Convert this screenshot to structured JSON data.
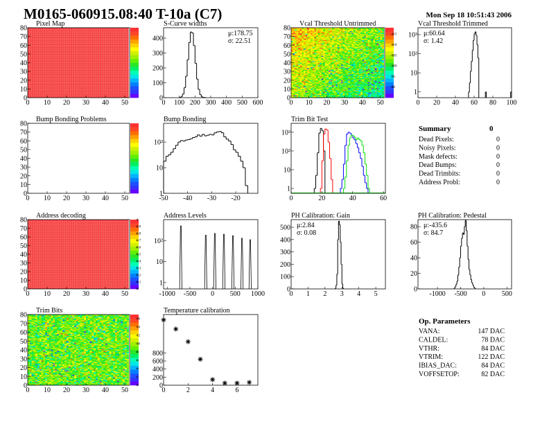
{
  "header": {
    "title": "M0165-060915.08:40 T-10a (C7)",
    "date": "Mon Sep 18 10:51:43 2006"
  },
  "chart_data": [
    {
      "id": "pixel_map",
      "type": "heatmap",
      "title": "Pixel Map",
      "xlim": [
        0,
        52.5
      ],
      "ylim": [
        0,
        80
      ],
      "xticks": [
        0,
        10,
        20,
        30,
        40,
        50
      ],
      "yticks": [
        0,
        10,
        20,
        30,
        40,
        50,
        60,
        70,
        80
      ],
      "content": "all pixels at maximum",
      "zticks": []
    },
    {
      "id": "s_curve",
      "type": "bar",
      "title": "S-Curve widths",
      "xlim": [
        0,
        600
      ],
      "ylim": [
        0,
        470
      ],
      "xticks": [
        0,
        100,
        200,
        300,
        400,
        500,
        600
      ],
      "yticks": [
        0,
        100,
        200,
        300,
        400
      ],
      "bin_width": 10,
      "bins": [
        100,
        110,
        120,
        130,
        140,
        150,
        160,
        170,
        180,
        190,
        200,
        210,
        220,
        230,
        240,
        250,
        260
      ],
      "values": [
        2,
        8,
        25,
        67,
        144,
        255,
        371,
        441,
        434,
        350,
        231,
        125,
        56,
        20,
        6,
        2,
        1
      ],
      "stats": {
        "mean": "μ:178.75",
        "sigma": "σ: 22.51"
      }
    },
    {
      "id": "vcal_untrimmed",
      "type": "heatmap",
      "title": "Vcal Threshold Untrimmed",
      "xlim": [
        0,
        52.5
      ],
      "ylim": [
        0,
        80
      ],
      "xticks": [
        0,
        10,
        20,
        30,
        40,
        50
      ],
      "yticks": [
        0,
        10,
        20,
        30,
        40,
        50,
        60,
        70,
        80
      ],
      "zlim": [
        85,
        118
      ],
      "zticks": [
        90,
        95,
        100,
        105,
        110,
        115
      ]
    },
    {
      "id": "vcal_trimmed",
      "type": "bar",
      "title": "Vcal Threshold Trimmed",
      "log_y": true,
      "xlim": [
        0,
        100
      ],
      "ylim": [
        0.5,
        2300
      ],
      "xticks": [
        0,
        20,
        40,
        60,
        80,
        100
      ],
      "yticks": [
        1,
        10,
        100,
        1000
      ],
      "ytick_labels": [
        "1",
        "10",
        "10²",
        "10³"
      ],
      "bin_width": 1,
      "bins": [
        54,
        55,
        56,
        57,
        58,
        59,
        60,
        61,
        62,
        63,
        64,
        72,
        99
      ],
      "values": [
        1,
        3,
        12,
        40,
        150,
        500,
        1100,
        1400,
        900,
        300,
        60,
        1,
        1
      ],
      "stats": {
        "mean": "μ:60.64",
        "sigma": "σ: 1.42"
      }
    },
    {
      "id": "bump_problems",
      "type": "heatmap",
      "title": "Bump Bonding Problems",
      "xlim": [
        0,
        52.5
      ],
      "ylim": [
        0,
        80
      ],
      "xticks": [
        0,
        10,
        20,
        30,
        40,
        50
      ],
      "yticks": [
        0,
        10,
        20,
        30,
        40,
        50,
        60,
        70,
        80
      ],
      "content": "empty",
      "zticks": []
    },
    {
      "id": "bump_bonding",
      "type": "bar",
      "title": "Bump Bonding",
      "log_y": true,
      "xlim": [
        -50,
        -10.8
      ],
      "ylim": [
        1,
        540
      ],
      "xticks": [
        -50,
        -40,
        -30,
        -20
      ],
      "yticks": [
        1,
        10,
        100
      ],
      "ytick_labels": [
        "1",
        "10",
        "10²"
      ],
      "bin_width": 1,
      "bins": [
        -50,
        -49,
        -48,
        -47,
        -46,
        -45,
        -44,
        -43,
        -42,
        -41,
        -40,
        -39,
        -38,
        -37,
        -36,
        -35,
        -34,
        -33,
        -32,
        -31,
        -30,
        -29,
        -28,
        -27,
        -26,
        -25,
        -24,
        -23,
        -22,
        -21,
        -20,
        -19,
        -18,
        -17,
        -16
      ],
      "values": [
        18,
        28,
        32,
        40,
        55,
        75,
        100,
        115,
        110,
        120,
        125,
        135,
        150,
        160,
        190,
        170,
        200,
        175,
        185,
        200,
        190,
        230,
        250,
        260,
        230,
        160,
        130,
        110,
        80,
        50,
        40,
        28,
        18,
        10,
        2
      ]
    },
    {
      "id": "trim_bit_test",
      "type": "bar",
      "title": "Trim Bit Test",
      "log_y": true,
      "xlim": [
        0,
        61.3
      ],
      "ylim": [
        0.55,
        3000
      ],
      "xticks": [
        0,
        20,
        40,
        60
      ],
      "yticks": [
        1,
        10,
        100,
        1000
      ],
      "ytick_labels": [
        "1",
        "10",
        "10²",
        "10³"
      ],
      "bin_width": 1,
      "series": [
        {
          "color": "#000000",
          "bins": [
            15,
            16,
            17,
            18,
            19,
            20,
            21
          ],
          "values": [
            1,
            5,
            80,
            900,
            1600,
            1200,
            100
          ]
        },
        {
          "color": "#ff0000",
          "bins": [
            19,
            20,
            21,
            22,
            23,
            24,
            25,
            26
          ],
          "values": [
            1,
            30,
            800,
            1500,
            1300,
            300,
            40,
            3
          ]
        },
        {
          "color": "#0000ff",
          "bins": [
            32,
            33,
            34,
            35,
            36,
            37,
            38,
            39,
            40,
            41,
            42,
            43,
            44,
            45,
            46,
            47,
            48,
            49
          ],
          "values": [
            1,
            3,
            20,
            200,
            800,
            1000,
            900,
            700,
            500,
            400,
            250,
            150,
            80,
            40,
            15,
            5,
            2,
            1
          ]
        },
        {
          "color": "#00dd00",
          "bins": [
            34,
            35,
            36,
            37,
            38,
            39,
            40,
            41,
            42,
            43,
            44,
            45,
            46,
            47,
            48,
            49,
            50
          ],
          "values": [
            1,
            4,
            30,
            200,
            500,
            700,
            650,
            550,
            400,
            500,
            400,
            350,
            200,
            80,
            20,
            5,
            1
          ]
        }
      ]
    },
    {
      "id": "address_decoding",
      "type": "heatmap",
      "title": "Address decoding",
      "xlim": [
        0,
        52.5
      ],
      "ylim": [
        0,
        80
      ],
      "xticks": [
        0,
        10,
        20,
        30,
        40,
        50
      ],
      "yticks": [
        0,
        10,
        20,
        30,
        40,
        50,
        60,
        70,
        80
      ],
      "content": "all pixels at maximum",
      "zticks": [
        "0",
        "0.1",
        "0.2",
        "0.3",
        "0.4",
        "0.5",
        "0.6",
        "0.7",
        "0.8",
        "0.9",
        "1"
      ]
    },
    {
      "id": "address_levels",
      "type": "bar",
      "title": "Address Levels",
      "log_y": true,
      "xlim": [
        -1080,
        1000
      ],
      "ylim": [
        0.5,
        1000
      ],
      "xticks": [
        -1000,
        -500,
        0,
        500,
        1000
      ],
      "yticks": [
        1,
        10,
        100
      ],
      "ytick_labels": [
        "1",
        "10",
        "10²"
      ],
      "peaks": [
        {
          "x": -700,
          "height": 500
        },
        {
          "x": -150,
          "height": 180
        },
        {
          "x": 50,
          "height": 220
        },
        {
          "x": 250,
          "height": 200
        },
        {
          "x": 450,
          "height": 170
        },
        {
          "x": 650,
          "height": 130
        },
        {
          "x": 830,
          "height": 110
        }
      ]
    },
    {
      "id": "ph_gain",
      "type": "bar",
      "title": "PH Calibration: Gain",
      "xlim": [
        0,
        5.57
      ],
      "ylim": [
        0,
        562
      ],
      "xticks": [
        0,
        1,
        2,
        3,
        4,
        5
      ],
      "yticks": [
        0,
        100,
        200,
        300,
        400,
        500
      ],
      "bin_width": 0.05,
      "bins": [
        2.6,
        2.65,
        2.7,
        2.75,
        2.8,
        2.85,
        2.9,
        2.95,
        3.0,
        3.05
      ],
      "values": [
        5,
        30,
        120,
        400,
        550,
        520,
        380,
        200,
        40,
        5
      ],
      "stats": {
        "mean": "μ:2.84",
        "sigma": "σ: 0.08"
      }
    },
    {
      "id": "ph_pedestal",
      "type": "bar",
      "title": "PH Calibration: Pedestal",
      "xlim": [
        -1420,
        600
      ],
      "ylim": [
        0,
        89
      ],
      "xticks": [
        -1000,
        -500,
        0,
        500
      ],
      "yticks": [
        0,
        20,
        40,
        60,
        80
      ],
      "bin_width": 20,
      "bins": [
        -640,
        -620,
        -600,
        -580,
        -560,
        -540,
        -520,
        -500,
        -480,
        -460,
        -440,
        -420,
        -400,
        -380,
        -360,
        -340,
        -320,
        -300,
        -280,
        -260,
        -240,
        -220,
        -200
      ],
      "values": [
        1,
        3,
        6,
        10,
        18,
        28,
        40,
        55,
        65,
        72,
        70,
        80,
        88,
        75,
        55,
        38,
        25,
        18,
        12,
        8,
        5,
        2,
        1
      ],
      "stats": {
        "mean": "μ:-435.6",
        "sigma": "σ: 84.7"
      }
    },
    {
      "id": "trim_bits",
      "type": "heatmap",
      "title": "Trim Bits",
      "xlim": [
        0,
        52.5
      ],
      "ylim": [
        0,
        80
      ],
      "xticks": [
        0,
        10,
        20,
        30,
        40,
        50
      ],
      "yticks": [
        0,
        10,
        20,
        30,
        40,
        50,
        60,
        70,
        80
      ],
      "zlim": [
        0,
        17
      ],
      "zticks": [
        0,
        2,
        4,
        6,
        8,
        10,
        12,
        14,
        16
      ]
    },
    {
      "id": "temperature",
      "type": "scatter",
      "title": "Temperature calibration",
      "xlim": [
        0,
        7.7
      ],
      "ylim": [
        0,
        1750
      ],
      "xticks": [
        0,
        2,
        4,
        6
      ],
      "yticks": [
        0,
        200,
        400,
        600,
        800
      ],
      "x": [
        0,
        1,
        2,
        3,
        4,
        5,
        6,
        7
      ],
      "y": [
        1617,
        1391,
        1078,
        643,
        139,
        52,
        52,
        70
      ]
    }
  ],
  "summary": {
    "title": "Summary",
    "total": "0",
    "rows": [
      {
        "label": "Dead Pixels:",
        "value": "0"
      },
      {
        "label": "Noisy Pixels:",
        "value": "0"
      },
      {
        "label": "Mask defects:",
        "value": "0"
      },
      {
        "label": "Dead Bumps:",
        "value": "0"
      },
      {
        "label": "Dead Trimbits:",
        "value": "0"
      },
      {
        "label": "Address Probl:",
        "value": "0"
      }
    ]
  },
  "op_parameters": {
    "title": "Op. Parameters",
    "rows": [
      {
        "label": "VANA:",
        "value": "147 DAC"
      },
      {
        "label": "CALDEL:",
        "value": "78 DAC"
      },
      {
        "label": "VTHR:",
        "value": "84 DAC"
      },
      {
        "label": "VTRIM:",
        "value": "122 DAC"
      },
      {
        "label": "IBIAS_DAC:",
        "value": "84 DAC"
      },
      {
        "label": "VOFFSETOP:",
        "value": "82 DAC"
      }
    ]
  }
}
